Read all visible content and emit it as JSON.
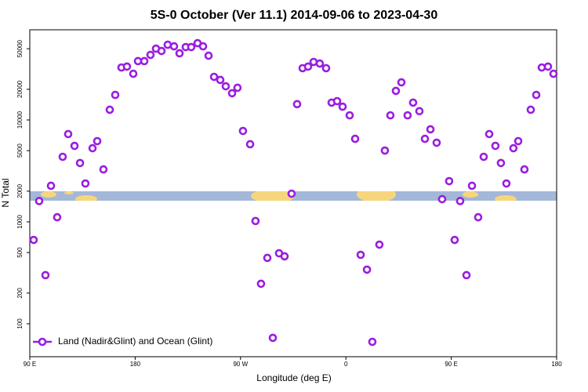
{
  "chart_data": {
    "type": "scatter",
    "title": "5S-0 October (Ver 11.1)   2014-09-06 to 2023-04-30",
    "x_label": "Longitude (deg E)",
    "y_label": "N Total",
    "y_scale": "log",
    "xlim": [
      90,
      540
    ],
    "ylim": [
      47.5,
      76700
    ],
    "xticks": [
      {
        "value": 90,
        "label": "90 E"
      },
      {
        "value": 180,
        "label": "180"
      },
      {
        "value": 270,
        "label": "90 W"
      },
      {
        "value": 360,
        "label": "0"
      },
      {
        "value": 450,
        "label": "90 E"
      },
      {
        "value": 540,
        "label": "180"
      }
    ],
    "yticks": [
      100,
      200,
      500,
      1000,
      2000,
      5000,
      10000,
      20000,
      50000
    ],
    "legend": "bottom-left",
    "series": [
      {
        "name": "Land (Nadir&Glint) and Ocean (Glint)",
        "color": "#9a1de0",
        "x": [
          93.3,
          98.0,
          103.4,
          108.1,
          113.4,
          118.1,
          122.8,
          128.2,
          132.9,
          137.5,
          143.6,
          147.6,
          152.9,
          158.3,
          163.0,
          168.3,
          173.0,
          178.4,
          182.4,
          187.8,
          193.1,
          197.8,
          202.5,
          207.8,
          213.2,
          217.9,
          223.2,
          227.9,
          233.3,
          238.0,
          242.7,
          247.4,
          252.7,
          257.4,
          262.8,
          267.4,
          272.1,
          278.2,
          282.8,
          287.5,
          292.9,
          297.6,
          302.9,
          307.6,
          313.6,
          318.3,
          323.0,
          327.7,
          332.4,
          337.7,
          343.1,
          347.8,
          352.5,
          357.2,
          363.2,
          367.9,
          372.6,
          378.0,
          382.6,
          388.6,
          393.3,
          398.0,
          402.7,
          407.4,
          412.7,
          417.4,
          422.8,
          427.5,
          432.2,
          437.5,
          442.2,
          448.2,
          452.9,
          457.6,
          463.0,
          467.7,
          473.0,
          477.7,
          482.4,
          487.7,
          492.4,
          497.1,
          503.1,
          507.2,
          512.5,
          517.9,
          522.6,
          527.3,
          532.6,
          537.3
        ],
        "values": [
          665,
          1600,
          300,
          2260,
          1110,
          4350,
          7270,
          5570,
          3780,
          2380,
          5280,
          6200,
          3270,
          12600,
          17600,
          32700,
          33400,
          28400,
          37800,
          37800,
          43500,
          50100,
          47500,
          54700,
          52800,
          45100,
          51900,
          51900,
          56700,
          52800,
          42700,
          26500,
          24700,
          21400,
          18300,
          20700,
          7800,
          5780,
          1020,
          247,
          443,
          72.8,
          492,
          459,
          1890,
          14300,
          32200,
          33400,
          37100,
          35800,
          32200,
          14800,
          15300,
          13500,
          11100,
          6530,
          475,
          340,
          66.5,
          598,
          5010,
          11100,
          19300,
          23400,
          11100,
          14800,
          12200,
          6530,
          8090,
          5980,
          1670,
          2510,
          665,
          1600,
          300,
          2260,
          1110,
          4350,
          7270,
          5570,
          3780,
          2380,
          5280,
          6200,
          3270,
          12600,
          17600,
          32700,
          33400,
          28400
        ]
      }
    ]
  }
}
